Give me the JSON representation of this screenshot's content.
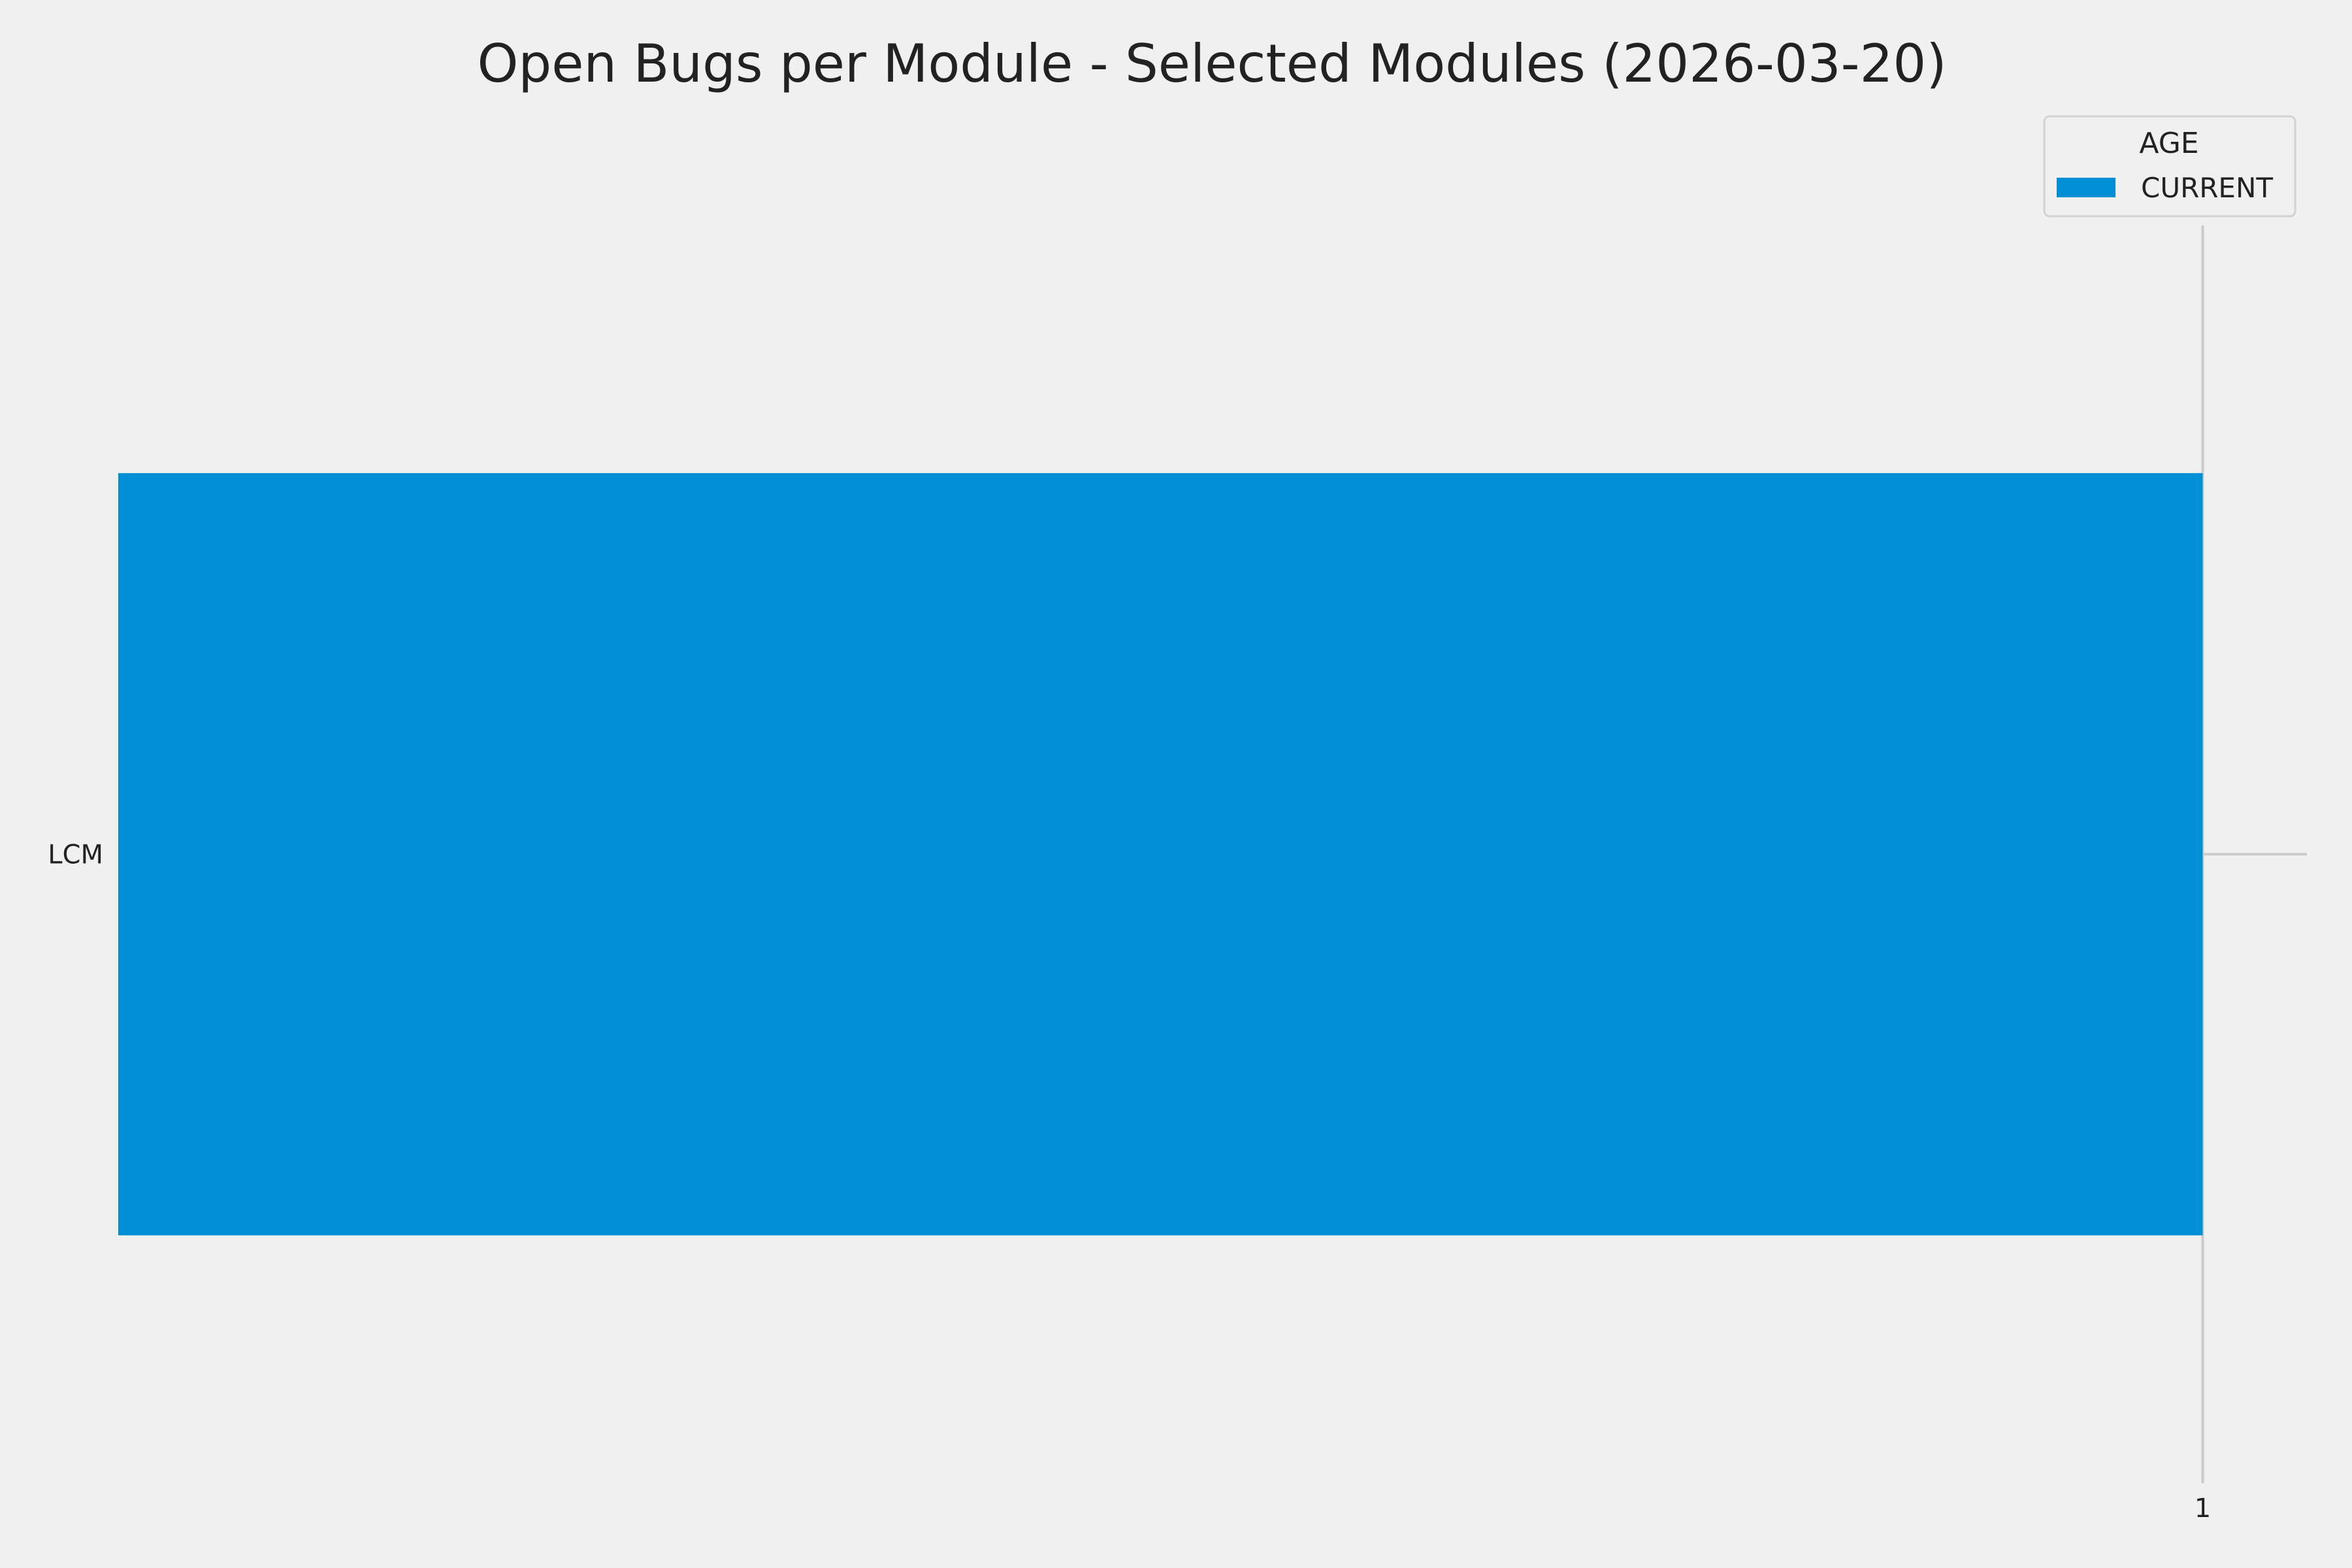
{
  "chart_data": {
    "type": "bar",
    "orientation": "horizontal",
    "title": "Open Bugs per Module - Selected Modules (2026-03-20)",
    "xlabel": "",
    "ylabel": "",
    "categories": [
      "LCM"
    ],
    "series": [
      {
        "name": "CURRENT",
        "values": [
          1
        ],
        "color": "#008fd5"
      }
    ],
    "xticks": [
      1
    ],
    "xtick_labels": [
      "1"
    ],
    "xlim": [
      0,
      1.05
    ],
    "ylim": [
      -0.66,
      0.66
    ],
    "grid": true,
    "legend": {
      "title": "AGE",
      "placement": "top-right",
      "entries": [
        "CURRENT"
      ]
    },
    "background": "#f0f0f0",
    "grid_color": "#cbcbcb"
  }
}
